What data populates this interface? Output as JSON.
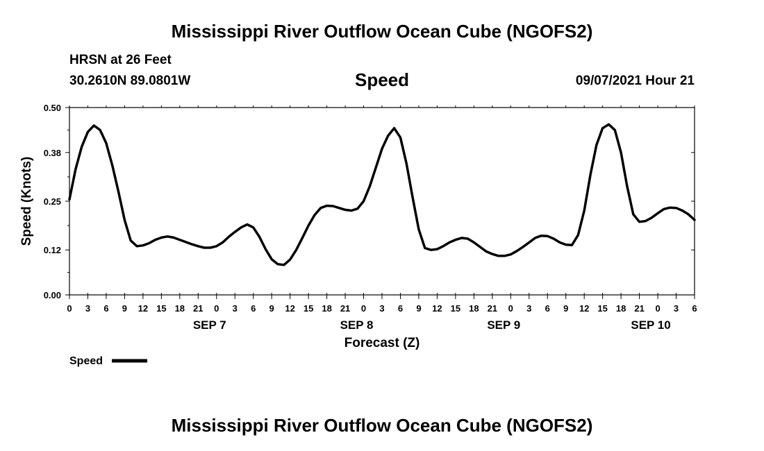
{
  "header": {
    "title": "Mississippi River Outflow Ocean Cube (NGOFS2)",
    "station": "HRSN at 26 Feet",
    "coords": "30.2610N  89.0801W",
    "datetime": "09/07/2021 Hour 21"
  },
  "footer": {
    "title": "Mississippi River Outflow Ocean Cube (NGOFS2)"
  },
  "colors": {
    "line": "#000000",
    "background": "#ffffff"
  },
  "chart_data": {
    "type": "line",
    "title": "Speed",
    "xlabel": "Forecast (Z)",
    "ylabel": "Speed (Knots)",
    "x_unit": "hours from 2021-09-06 00Z",
    "xlim": [
      0,
      102
    ],
    "ylim": [
      0,
      0.5
    ],
    "yticks": [
      0.0,
      0.12,
      0.25,
      0.38,
      0.5
    ],
    "ytick_labels": [
      "0.00",
      "0.12",
      "0.25",
      "0.38",
      "0.50"
    ],
    "xticks": [
      0,
      3,
      6,
      9,
      12,
      15,
      18,
      21,
      24,
      27,
      30,
      33,
      36,
      39,
      42,
      45,
      48,
      51,
      54,
      57,
      60,
      63,
      66,
      69,
      72,
      75,
      78,
      81,
      84,
      87,
      90,
      93,
      96,
      99,
      102
    ],
    "xtick_labels": [
      "0",
      "3",
      "6",
      "9",
      "12",
      "15",
      "18",
      "21",
      "0",
      "3",
      "6",
      "9",
      "12",
      "15",
      "18",
      "21",
      "0",
      "3",
      "6",
      "9",
      "12",
      "15",
      "18",
      "21",
      "0",
      "3",
      "6",
      "9",
      "12",
      "15",
      "18",
      "21",
      "0",
      "3",
      "6"
    ],
    "date_labels": [
      {
        "x": 24,
        "label": "SEP 7"
      },
      {
        "x": 48,
        "label": "SEP 8"
      },
      {
        "x": 72,
        "label": "SEP 9"
      },
      {
        "x": 96,
        "label": "SEP 10"
      }
    ],
    "legend": {
      "label": "Speed",
      "placement": "bottom-left"
    },
    "grid": false,
    "series": [
      {
        "name": "Speed",
        "x": [
          0,
          1,
          2,
          3,
          4,
          5,
          6,
          7,
          8,
          9,
          10,
          11,
          12,
          13,
          14,
          15,
          16,
          17,
          18,
          19,
          20,
          21,
          22,
          23,
          24,
          25,
          26,
          27,
          28,
          29,
          30,
          31,
          32,
          33,
          34,
          35,
          36,
          37,
          38,
          39,
          40,
          41,
          42,
          43,
          44,
          45,
          46,
          47,
          48,
          49,
          50,
          51,
          52,
          53,
          54,
          55,
          56,
          57,
          58,
          59,
          60,
          61,
          62,
          63,
          64,
          65,
          66,
          67,
          68,
          69,
          70,
          71,
          72,
          73,
          74,
          75,
          76,
          77,
          78,
          79,
          80,
          81,
          82,
          83,
          84,
          85,
          86,
          87,
          88,
          89,
          90,
          91,
          92,
          93,
          94,
          95,
          96,
          97,
          98,
          99,
          100,
          101,
          102
        ],
        "values": [
          0.255,
          0.335,
          0.395,
          0.435,
          0.452,
          0.44,
          0.405,
          0.345,
          0.275,
          0.2,
          0.145,
          0.13,
          0.132,
          0.138,
          0.147,
          0.153,
          0.156,
          0.153,
          0.147,
          0.141,
          0.135,
          0.13,
          0.126,
          0.126,
          0.13,
          0.14,
          0.155,
          0.168,
          0.18,
          0.188,
          0.18,
          0.155,
          0.122,
          0.095,
          0.082,
          0.08,
          0.094,
          0.12,
          0.152,
          0.185,
          0.213,
          0.232,
          0.238,
          0.237,
          0.232,
          0.227,
          0.225,
          0.23,
          0.25,
          0.29,
          0.34,
          0.39,
          0.425,
          0.445,
          0.42,
          0.35,
          0.26,
          0.175,
          0.125,
          0.12,
          0.122,
          0.13,
          0.14,
          0.147,
          0.152,
          0.15,
          0.14,
          0.128,
          0.116,
          0.109,
          0.104,
          0.104,
          0.108,
          0.117,
          0.128,
          0.14,
          0.152,
          0.158,
          0.157,
          0.15,
          0.14,
          0.134,
          0.133,
          0.16,
          0.225,
          0.32,
          0.4,
          0.445,
          0.455,
          0.44,
          0.38,
          0.29,
          0.215,
          0.195,
          0.197,
          0.206,
          0.218,
          0.229,
          0.233,
          0.232,
          0.225,
          0.215,
          0.2
        ]
      }
    ]
  }
}
